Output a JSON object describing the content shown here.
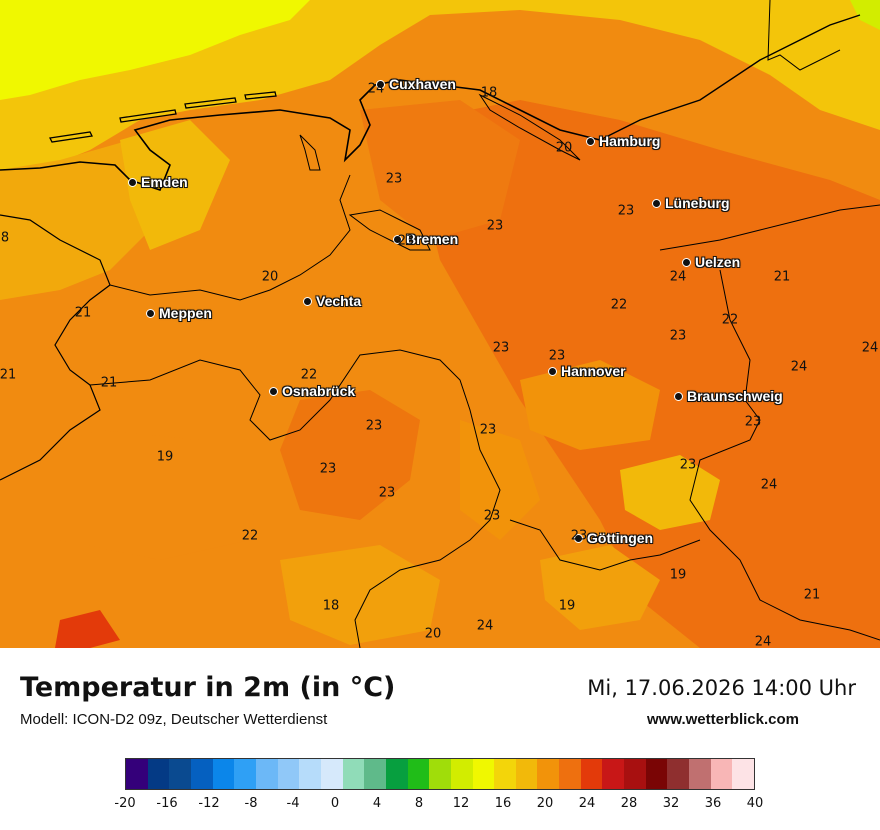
{
  "map": {
    "cities": [
      {
        "name": "Cuxhaven"
      },
      {
        "name": "Hamburg"
      },
      {
        "name": "Emden"
      },
      {
        "name": "Lüneburg"
      },
      {
        "name": "Bremen"
      },
      {
        "name": "Uelzen"
      },
      {
        "name": "Vechta"
      },
      {
        "name": "Meppen"
      },
      {
        "name": "Hannover"
      },
      {
        "name": "Osnabrück"
      },
      {
        "name": "Braunschweig"
      },
      {
        "name": "Göttingen"
      }
    ],
    "values": [
      "24",
      "18",
      "20",
      "23",
      "23",
      "23",
      "23",
      "8",
      "20",
      "24",
      "22",
      "21",
      "21",
      "23",
      "22",
      "23",
      "23",
      "24",
      "21",
      "22",
      "23",
      "23",
      "23",
      "19",
      "23",
      "23",
      "23",
      "24",
      "23",
      "22",
      "23",
      "19",
      "21",
      "18",
      "19",
      "20",
      "24",
      "24"
    ]
  },
  "footer": {
    "title": "Temperatur in 2m (in °C)",
    "model": "Modell: ICON-D2 09z, Deutscher Wetterdienst",
    "datetime": "Mi, 17.06.2026 14:00 Uhr",
    "website": "www.wetterblick.com"
  },
  "colorbar": {
    "colors": [
      "#34007a",
      "#043a85",
      "#0a4a90",
      "#0560c0",
      "#0b86ea",
      "#2fa0f5",
      "#6cb8f7",
      "#90c8f8",
      "#b6dcfa",
      "#d6e9fb",
      "#90dcb8",
      "#5fba8a",
      "#079f3f",
      "#20bd18",
      "#a0dd0a",
      "#d2ed00",
      "#f0f800",
      "#f3d50a",
      "#f2b90a",
      "#f2930a",
      "#ee700f",
      "#e33a0a",
      "#c81717",
      "#a81010",
      "#7a0505",
      "#8f2f2f",
      "#c07070",
      "#f8b6b6",
      "#fde3e6"
    ],
    "tick_labels": [
      "-20",
      "-16",
      "-12",
      "-8",
      "-4",
      "0",
      "4",
      "8",
      "12",
      "16",
      "20",
      "24",
      "28",
      "32",
      "36",
      "40"
    ]
  }
}
